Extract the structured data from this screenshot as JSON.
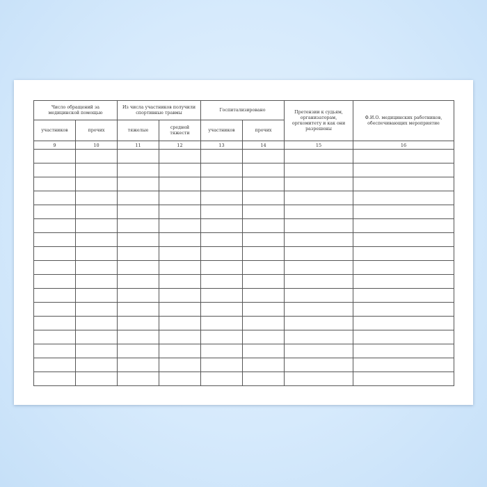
{
  "table": {
    "group_headers": {
      "medical_visits": "Число обращений за медицинской помощью",
      "sport_injuries": "Из числа участников получили спортивные травмы",
      "hospitalized": "Госпитализировано",
      "claims": "Претензии к судьям, организаторам, оргкомитету и как они разрешены",
      "medical_staff": "Ф.И.О. медицинских работников, обеспечивающих мероприятие"
    },
    "sub_headers": [
      "участников",
      "прочих",
      "тяжелые",
      "средней тяжести",
      "участников",
      "прочих"
    ],
    "column_numbers": [
      "9",
      "10",
      "11",
      "12",
      "13",
      "14",
      "15",
      "16"
    ]
  }
}
